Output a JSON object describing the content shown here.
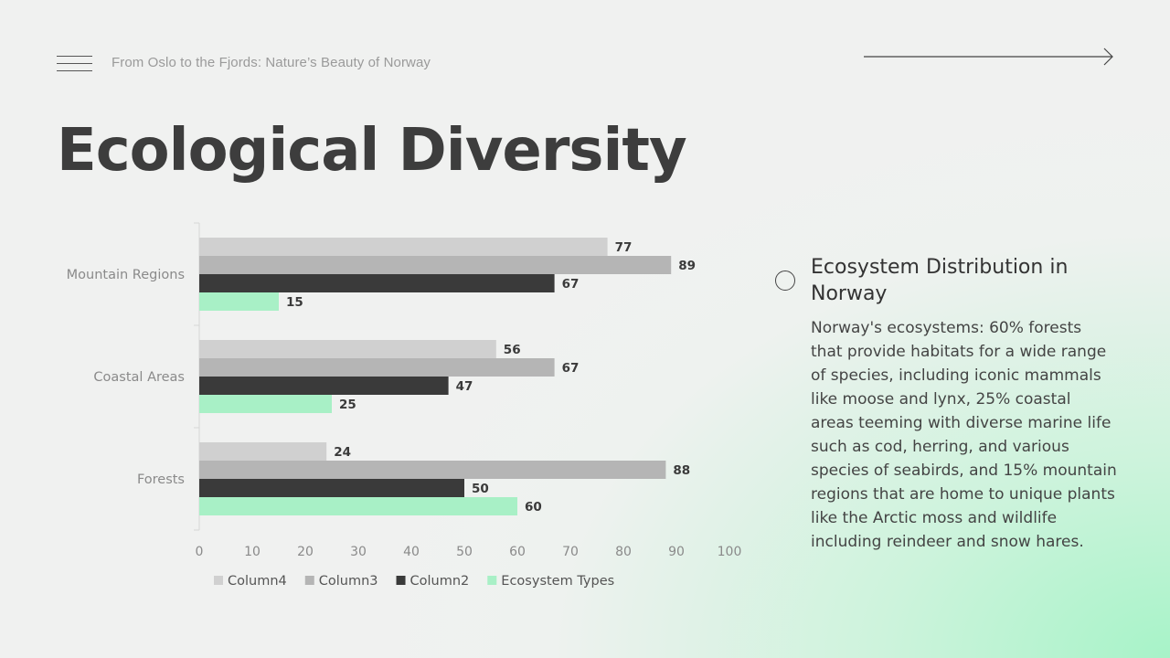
{
  "header": {
    "subtitle": "From Oslo to the Fjords: Nature’s Beauty of Norway",
    "title": "Ecological Diversity"
  },
  "sidebar": {
    "heading": "Ecosystem Distribution in Norway",
    "body": "Norway's ecosystems: 60% forests that provide habitats for a wide range of species, including iconic mammals like moose and lynx, 25% coastal areas teeming with diverse marine life such as cod, herring, and various species of seabirds, and 15% mountain regions that are home to unique plants like the Arctic moss and wildlife including reindeer and snow hares."
  },
  "icons": {
    "menu": "hamburger-menu-icon",
    "next": "arrow-right-icon",
    "bullet": "circle-bullet-icon"
  },
  "colors": {
    "Column4": "#d0d0d0",
    "Column3": "#b5b5b5",
    "Column2": "#3a3a3a",
    "Ecosystem Types": "#a8f0c6"
  },
  "chart_data": {
    "type": "bar",
    "orientation": "horizontal",
    "categories": [
      "Mountain Regions",
      "Coastal Areas",
      "Forests"
    ],
    "series": [
      {
        "name": "Column4",
        "values": [
          77,
          56,
          24
        ]
      },
      {
        "name": "Column3",
        "values": [
          89,
          67,
          88
        ]
      },
      {
        "name": "Column2",
        "values": [
          67,
          47,
          50
        ]
      },
      {
        "name": "Ecosystem Types",
        "values": [
          15,
          25,
          60
        ]
      }
    ],
    "xlim": [
      0,
      100
    ],
    "x_ticks": [
      0,
      10,
      20,
      30,
      40,
      50,
      60,
      70,
      80,
      90,
      100
    ],
    "legend": "bottom",
    "data_labels": true,
    "grid": false
  }
}
